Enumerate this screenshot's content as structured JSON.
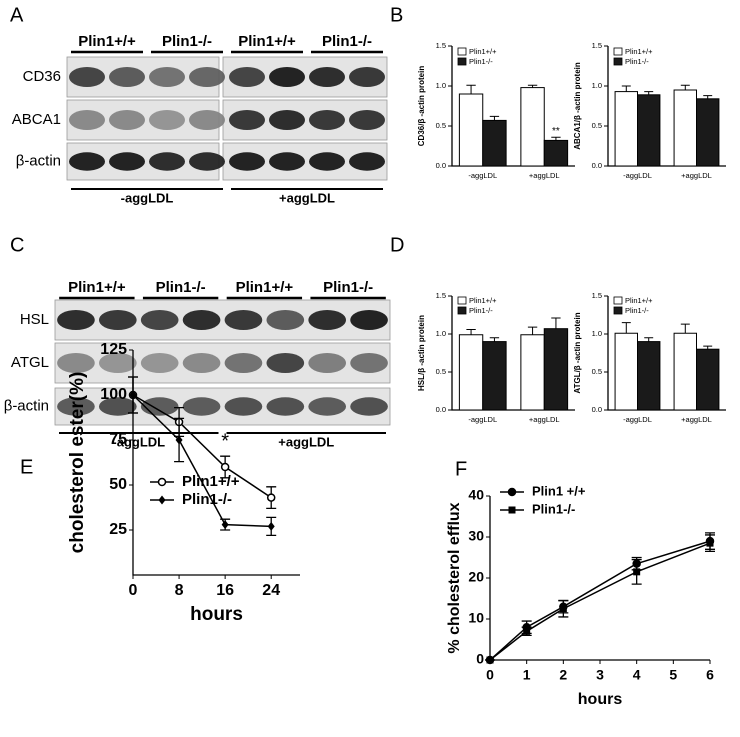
{
  "panels": [
    "A",
    "B",
    "C",
    "D",
    "E",
    "F"
  ],
  "blots": [
    {
      "columns": [
        "Plin1+/+",
        "Plin1-/-",
        "Plin1+/+",
        "Plin1-/-"
      ],
      "rows": [
        "CD36",
        "ABCA1",
        "β-actin"
      ],
      "conditions": [
        "-aggLDL",
        "+aggLDL"
      ]
    },
    {
      "columns": [
        "Plin1+/+",
        "Plin1-/-",
        "Plin1+/+",
        "Plin1-/-"
      ],
      "rows": [
        "HSL",
        "ATGL",
        "β-actin"
      ],
      "conditions": [
        "-aggLDL",
        "+aggLDL"
      ]
    }
  ],
  "chart_data": [
    {
      "type": "bar",
      "ylabel": "CD36/β -actin protein",
      "categories": [
        "-aggLDL",
        "+aggLDL"
      ],
      "series": [
        {
          "name": "Plin1+/+",
          "color": "#ffffff",
          "values": [
            0.9,
            0.98
          ],
          "errors": [
            0.11,
            0.03
          ]
        },
        {
          "name": "Plin1-/-",
          "color": "#1a1a1a",
          "values": [
            0.57,
            0.32
          ],
          "errors": [
            0.05,
            0.04
          ]
        }
      ],
      "ylim": [
        0,
        1.5
      ],
      "yticks": [
        {
          "value": 0,
          "label": "0.0"
        },
        0.5,
        {
          "value": 1,
          "label": "1.0"
        },
        1.5
      ],
      "annotation": "**"
    },
    {
      "type": "bar",
      "ylabel": "ABCA1/β -actin protein",
      "categories": [
        "-aggLDL",
        "+aggLDL"
      ],
      "series": [
        {
          "name": "Plin1+/+",
          "color": "#ffffff",
          "values": [
            0.93,
            0.95
          ],
          "errors": [
            0.07,
            0.06
          ]
        },
        {
          "name": "Plin1-/-",
          "color": "#1a1a1a",
          "values": [
            0.89,
            0.84
          ],
          "errors": [
            0.04,
            0.04
          ]
        }
      ],
      "ylim": [
        0,
        1.5
      ],
      "yticks": [
        {
          "value": 0,
          "label": "0.0"
        },
        0.5,
        {
          "value": 1,
          "label": "1.0"
        },
        1.5
      ]
    },
    {
      "type": "bar",
      "ylabel": "HSL/β -actin protein",
      "categories": [
        "-aggLDL",
        "+aggLDL"
      ],
      "series": [
        {
          "name": "Plin1+/+",
          "color": "#ffffff",
          "values": [
            0.99,
            0.99
          ],
          "errors": [
            0.07,
            0.1
          ]
        },
        {
          "name": "Plin1-/-",
          "color": "#1a1a1a",
          "values": [
            0.9,
            1.07
          ],
          "errors": [
            0.05,
            0.14
          ]
        }
      ],
      "ylim": [
        0,
        1.5
      ],
      "yticks": [
        {
          "value": 0,
          "label": "0.0"
        },
        0.5,
        {
          "value": 1,
          "label": "1.0"
        },
        1.5
      ]
    },
    {
      "type": "bar",
      "ylabel": "ATGL/β -actin protein",
      "categories": [
        "-aggLDL",
        "+aggLDL"
      ],
      "series": [
        {
          "name": "Plin1+/+",
          "color": "#ffffff",
          "values": [
            1.01,
            1.01
          ],
          "errors": [
            0.14,
            0.12
          ]
        },
        {
          "name": "Plin1-/-",
          "color": "#1a1a1a",
          "values": [
            0.9,
            0.8
          ],
          "errors": [
            0.05,
            0.04
          ]
        }
      ],
      "ylim": [
        0,
        1.5
      ],
      "yticks": [
        {
          "value": 0,
          "label": "0.0"
        },
        0.5,
        {
          "value": 1,
          "label": "1.0"
        },
        1.5
      ]
    },
    {
      "type": "line",
      "xlabel": "hours",
      "ylabel": "cholesterol ester(%)",
      "x": [
        0,
        8,
        16,
        24
      ],
      "series": [
        {
          "name": "Plin1+/+",
          "color": "#000000",
          "marker": "open-circle",
          "values": [
            100,
            85,
            60,
            43
          ],
          "errors": [
            10,
            8,
            6,
            6
          ]
        },
        {
          "name": "Plin1-/-",
          "color": "#000000",
          "marker": "diamond",
          "values": [
            100,
            75,
            28,
            27
          ],
          "errors": [
            10,
            12,
            3,
            5
          ]
        }
      ],
      "xlim": [
        0,
        29
      ],
      "xticks": [
        0,
        8,
        16,
        24
      ],
      "ylim": [
        0,
        125
      ],
      "yticks": [
        25,
        50,
        75,
        100,
        125
      ],
      "annotation": "*"
    },
    {
      "type": "line",
      "xlabel": "hours",
      "ylabel": "% cholesterol efflux",
      "x": [
        0,
        1,
        2,
        4,
        6
      ],
      "series": [
        {
          "name": "Plin1 +/+",
          "color": "#000000",
          "marker": "circle",
          "values": [
            0,
            8,
            13,
            23.5,
            29
          ],
          "errors": [
            0,
            1.5,
            1.5,
            1.5,
            2
          ]
        },
        {
          "name": "Plin1-/-",
          "color": "#000000",
          "marker": "square",
          "values": [
            0,
            7,
            12.5,
            21.5,
            28.5
          ],
          "errors": [
            0,
            1,
            2,
            3,
            2
          ]
        }
      ],
      "xlim": [
        0,
        6
      ],
      "xticks": [
        0,
        1,
        2,
        3,
        4,
        5,
        6
      ],
      "ylim": [
        0,
        40
      ],
      "yticks": [
        0,
        10,
        20,
        30,
        40
      ]
    }
  ]
}
